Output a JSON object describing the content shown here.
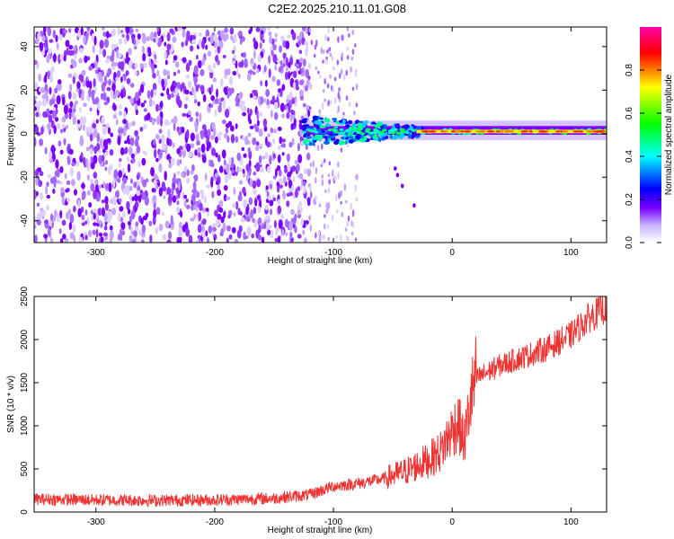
{
  "title": "C2E2.2025.210.11.01.G08",
  "chart_data": [
    {
      "type": "heatmap",
      "xlabel": "Height of straight line (km)",
      "ylabel": "Frequency (Hz)",
      "xlim": [
        -352,
        130
      ],
      "ylim": [
        -50,
        49
      ],
      "x_ticks": [
        -300,
        -200,
        -100,
        0,
        100
      ],
      "y_ticks": [
        -40,
        -20,
        0,
        20,
        40
      ],
      "colorbar": {
        "label": "Normalized spectral amplitude",
        "range": [
          0,
          1
        ],
        "ticks": [
          0.0,
          0.2,
          0.4,
          0.6,
          0.8
        ],
        "colors": [
          "#ffffff",
          "#7a00ff",
          "#0000ff",
          "#00ffff",
          "#00ff00",
          "#ffff00",
          "#ff0000",
          "#ff00ff"
        ]
      },
      "features": {
        "noise_region_x": [
          -352,
          -120
        ],
        "sparse_region_x": [
          -120,
          -80
        ],
        "signal_band_center_hz": 1,
        "signal_band_start_x": -125,
        "high_amplitude_x": [
          -30,
          130
        ]
      },
      "grid": false
    },
    {
      "type": "line",
      "xlabel": "Height of straight line (km)",
      "ylabel": "SNR (10 * v/v)",
      "xlim": [
        -352,
        130
      ],
      "ylim": [
        0,
        2500
      ],
      "x_ticks": [
        -300,
        -200,
        -100,
        0,
        100
      ],
      "y_ticks": [
        0,
        500,
        1000,
        1500,
        2000,
        2500
      ],
      "line_color": "#ee3333",
      "series": [
        {
          "x": [
            -352,
            -300,
            -250,
            -200,
            -150,
            -120,
            -100,
            -80,
            -60,
            -40,
            -20,
            -10,
            0,
            5,
            10,
            15,
            20,
            40,
            60,
            80,
            100,
            115,
            130
          ],
          "y": [
            150,
            140,
            135,
            140,
            160,
            200,
            300,
            330,
            380,
            470,
            600,
            700,
            950,
            1050,
            800,
            1250,
            1550,
            1700,
            1800,
            1900,
            2050,
            2250,
            2380
          ]
        }
      ],
      "grid": false
    }
  ]
}
